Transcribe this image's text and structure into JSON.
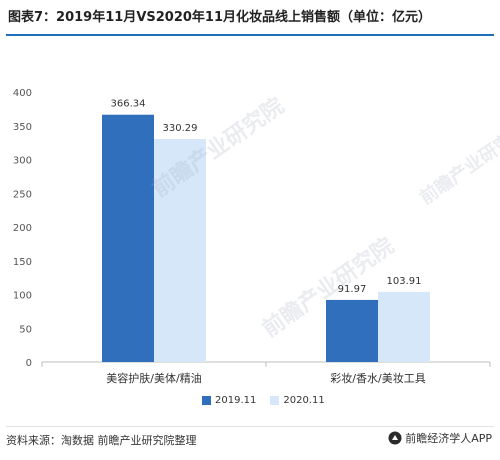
{
  "title": "图表7：2019年11月VS2020年11月化妆品线上销售额（单位：亿元）",
  "source": "资料来源：淘数据 前瞻产业研究院整理",
  "brand": {
    "label": "前瞻经济学人APP",
    "icon": "qianzhan-logo-icon"
  },
  "watermark": "前瞻产业研究院",
  "colors": {
    "series_2019": "#2f6fbc",
    "series_2020": "#d6e7fa",
    "title_rule": "#1f6fb8",
    "axis": "#bfbfbf"
  },
  "chart_data": {
    "type": "bar",
    "categories": [
      "美容护肤/美体/精油",
      "彩妆/香水/美妆工具"
    ],
    "series": [
      {
        "name": "2019.11",
        "values": [
          366.34,
          91.97
        ]
      },
      {
        "name": "2020.11",
        "values": [
          330.29,
          103.91
        ]
      }
    ],
    "data_labels": [
      [
        "366.34",
        "91.97"
      ],
      [
        "330.29",
        "103.91"
      ]
    ],
    "ylim": [
      0,
      400
    ],
    "yticks": [
      0,
      50,
      100,
      150,
      200,
      250,
      300,
      350,
      400
    ],
    "xlabel": "",
    "ylabel": "",
    "grid": false,
    "legend": "bottom-center"
  }
}
